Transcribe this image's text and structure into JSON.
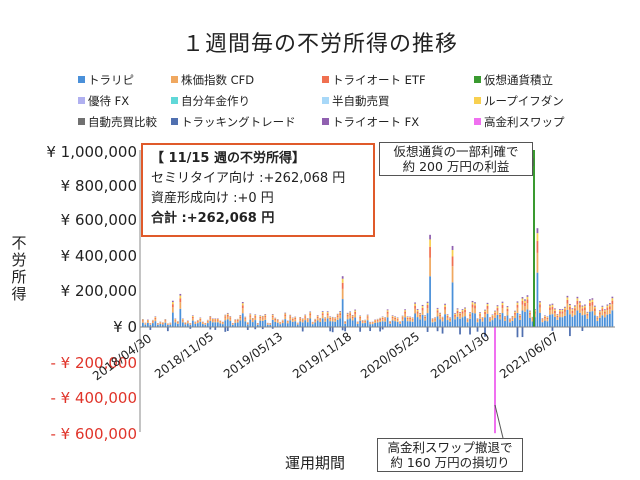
{
  "title": "１週間毎の不労所得の推移",
  "legend": [
    {
      "name": "トラリピ",
      "color": "#4a90d9"
    },
    {
      "name": "株価指数 CFD",
      "color": "#f0a860"
    },
    {
      "name": "トライオート ETF",
      "color": "#f07050"
    },
    {
      "name": "仮想通貨積立",
      "color": "#3a9a30"
    },
    {
      "name": "優待 FX",
      "color": "#b0b0f0"
    },
    {
      "name": "自分年金作り",
      "color": "#60d8d8"
    },
    {
      "name": "半自動売買",
      "color": "#a8d8f8"
    },
    {
      "name": "ループイフダン",
      "color": "#f8d050"
    },
    {
      "name": "自動売買比較",
      "color": "#707070"
    },
    {
      "name": "トラッキングトレード",
      "color": "#5070b0"
    },
    {
      "name": "トライオート FX",
      "color": "#9060b0"
    },
    {
      "name": "高金利スワップ",
      "color": "#f070f0"
    }
  ],
  "info": {
    "heading": "【 11/15 週の不労所得】",
    "semi": "セミリタイア向け :+262,068 円",
    "asset": "資産形成向け :+0 円",
    "total": "合計 :+262,068 円"
  },
  "callouts": {
    "crypto_line1": "仮想通貨の一部利確で",
    "crypto_line2": "約 200 万円の利益",
    "swap_line1": "高金利スワップ撤退で",
    "swap_line2": "約 160 万円の損切り"
  },
  "chart_data": {
    "type": "bar",
    "stacked": true,
    "title": "１週間毎の不労所得の推移",
    "xlabel": "運用期間",
    "ylabel": "不労所得",
    "ylim": [
      -600000,
      1000000
    ],
    "yticks": [
      {
        "value": 1000000,
        "label": "¥ 1,000,000"
      },
      {
        "value": 800000,
        "label": "¥ 800,000"
      },
      {
        "value": 600000,
        "label": "¥ 600,000"
      },
      {
        "value": 400000,
        "label": "¥ 400,000"
      },
      {
        "value": 200000,
        "label": "¥ 200,000"
      },
      {
        "value": 0,
        "label": "¥ 0"
      },
      {
        "value": -200000,
        "label": "- ¥ 200,000"
      },
      {
        "value": -400000,
        "label": "- ¥ 400,000"
      },
      {
        "value": -600000,
        "label": "- ¥ 600,000"
      }
    ],
    "xticks": [
      "2018/04/30",
      "2018/11/05",
      "2019/05/13",
      "2019/11/18",
      "2020/05/25",
      "2020/11/30",
      "2021/06/07"
    ],
    "grid": false,
    "legend_position": "top",
    "notable_points": [
      {
        "week": "2021/06 付近",
        "series": "仮想通貨積立",
        "value": 1000000
      },
      {
        "week": "2021/01 付近",
        "series": "高金利スワップ",
        "value": -600000
      }
    ],
    "totals_profile": [
      {
        "period": "2018/04/30–2018/11/05",
        "typical_weekly_total": 60000
      },
      {
        "period": "2018/11/05–2019/05/13",
        "typical_weekly_total": 70000
      },
      {
        "period": "2019/05/13–2019/11/18",
        "typical_weekly_total": 80000
      },
      {
        "period": "2019/11/18–2020/05/25",
        "typical_weekly_total": 90000
      },
      {
        "period": "2020/05/25–2020/11/30",
        "typical_weekly_total": 130000
      },
      {
        "period": "2020/11/30–2021/06/07",
        "typical_weekly_total": 160000
      },
      {
        "period": "2021/06/07–2021/11/15",
        "typical_weekly_total": 170000
      }
    ]
  }
}
